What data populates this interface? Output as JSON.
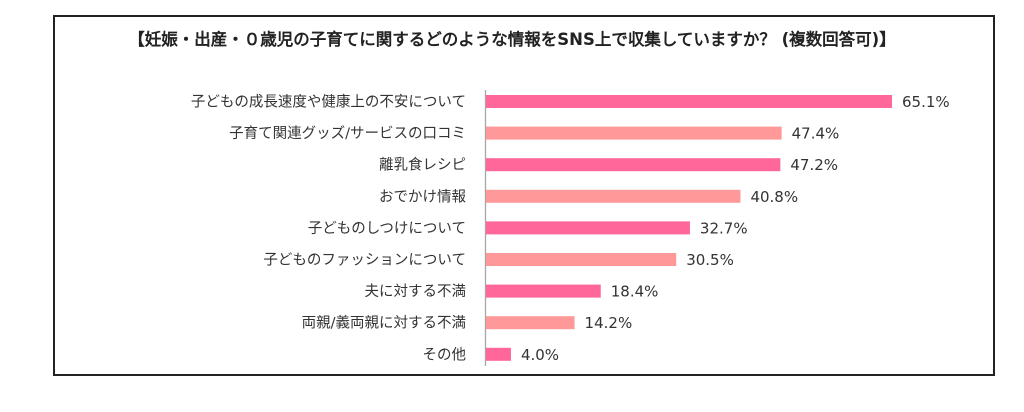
{
  "chart_data": {
    "type": "bar",
    "orientation": "horizontal",
    "title": "【妊娠・出産・０歳児の子育てに関するどのような情報をSNS上で収集していますか？ (複数回答可)】",
    "xlabel": "",
    "ylabel": "",
    "xlim": [
      0,
      70
    ],
    "grid": false,
    "categories": [
      "子どもの成長速度や健康上の不安について",
      "子育て関連グッズ/サービスの口コミ",
      "離乳食レシピ",
      "おでかけ情報",
      "子どものしつけについて",
      "子どものファッションについて",
      "夫に対する不満",
      "両親/義両親に対する不満",
      "その他"
    ],
    "values": [
      65.1,
      47.4,
      47.2,
      40.8,
      32.7,
      30.5,
      18.4,
      14.2,
      4.0
    ],
    "value_labels": [
      "65.1%",
      "47.4%",
      "47.2%",
      "40.8%",
      "32.7%",
      "30.5%",
      "18.4%",
      "14.2%",
      "4.0%"
    ],
    "colors": [
      "#ff6699",
      "#ff9999"
    ]
  }
}
